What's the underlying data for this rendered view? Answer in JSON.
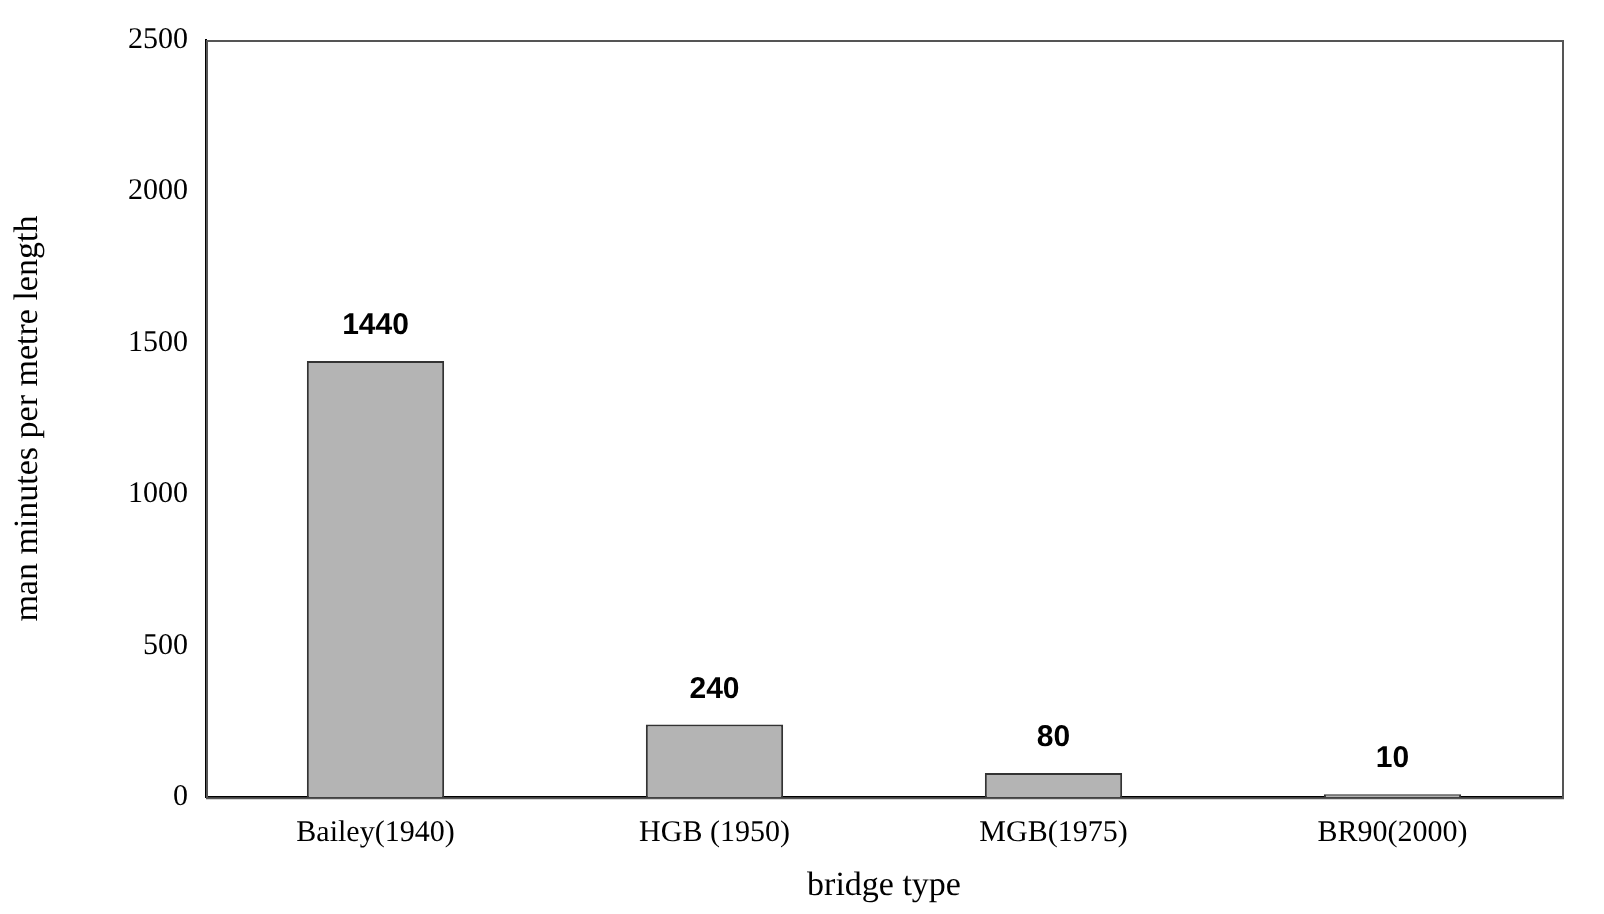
{
  "chart_data": {
    "type": "bar",
    "xlabel": "bridge type",
    "ylabel": "man minutes per metre length",
    "categories": [
      "Bailey(1940)",
      "HGB (1950)",
      "MGB(1975)",
      "BR90(2000)"
    ],
    "values": [
      1440,
      240,
      80,
      10
    ],
    "color": "#b4b4b4",
    "ylim": [
      0,
      2500
    ],
    "yticks": [
      0,
      500,
      1000,
      1500,
      2000,
      2500
    ],
    "grid": false,
    "legend": false,
    "data_labels": true
  }
}
